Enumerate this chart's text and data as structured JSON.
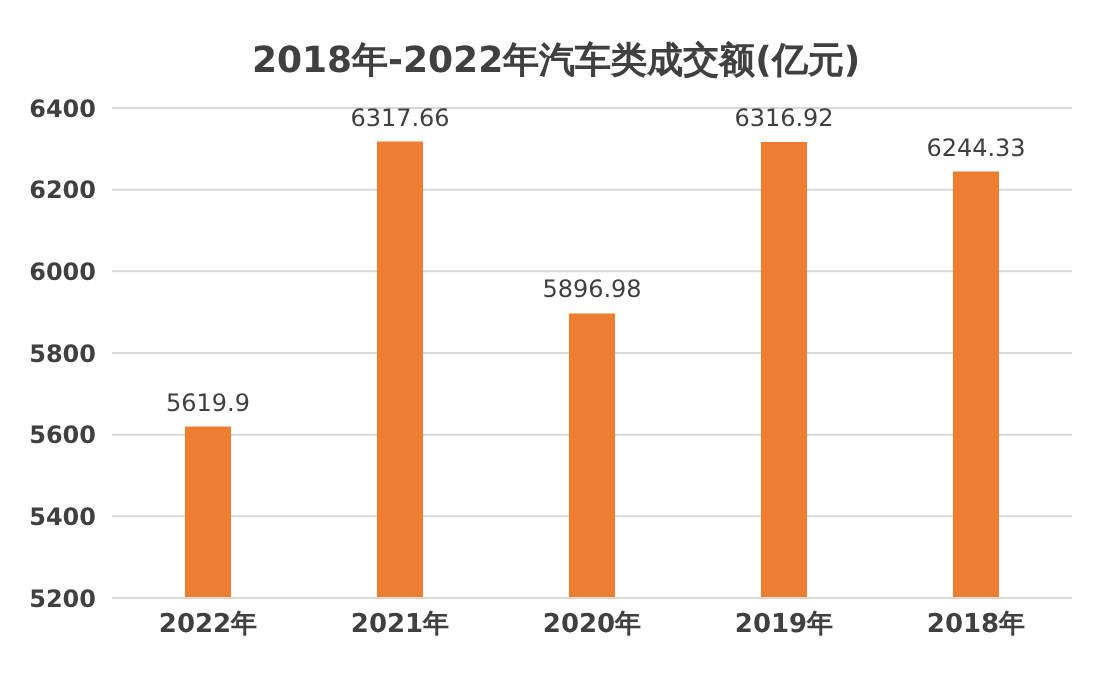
{
  "chart_data": {
    "type": "bar",
    "title": "2018年-2022年汽车类成交额(亿元)",
    "categories": [
      "2022年",
      "2021年",
      "2020年",
      "2019年",
      "2018年"
    ],
    "values": [
      5619.9,
      6317.66,
      5896.98,
      6316.92,
      6244.33
    ],
    "color": "#ed7d31",
    "ylim": [
      5200,
      6400
    ],
    "yticks": [
      5200,
      5400,
      5600,
      5800,
      6000,
      6200,
      6400
    ],
    "grid": "y",
    "data_labels": true
  }
}
